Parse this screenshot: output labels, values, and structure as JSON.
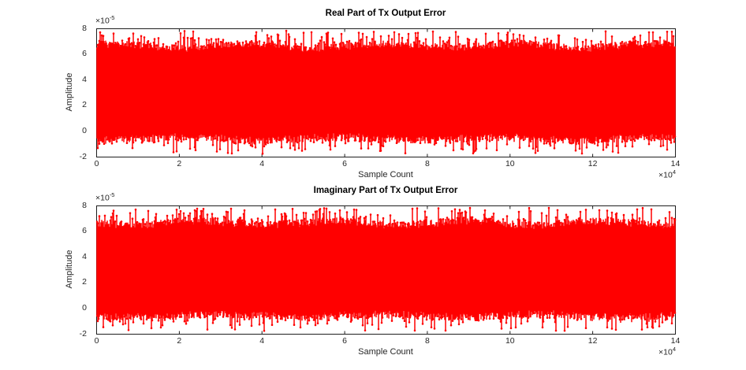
{
  "figure": {
    "background": "#FFFFFF",
    "axis_color": "#1F1F1F",
    "text_color": "#262626",
    "title_color": "#000000"
  },
  "chart_data": [
    {
      "type": "stem",
      "title": "Real Part of Tx Output Error",
      "xlabel": "Sample Count",
      "ylabel": "Amplitude",
      "x_exponent": {
        "base": "×10",
        "exp": "4"
      },
      "y_exponent": {
        "base": "×10",
        "exp": "-5"
      },
      "xlim": [
        0,
        14
      ],
      "ylim": [
        -2,
        8
      ],
      "xticks": [
        0,
        2,
        4,
        6,
        8,
        10,
        12,
        14
      ],
      "yticks": [
        8,
        6,
        4,
        2,
        0,
        -2
      ],
      "grid": false,
      "series_color": "#FF0000",
      "noise_envelope": {
        "core_top": 6.65,
        "core_top_jitter": 0.3,
        "spike_top_max": 7.85,
        "top_spike_prob": 0.3,
        "core_bottom": -0.55,
        "core_bottom_jitter": 0.3,
        "spike_bottom_min": -1.75,
        "bottom_spike_prob": 0.24,
        "units": "1e-5"
      },
      "seed": 7
    },
    {
      "type": "stem",
      "title": "Imaginary Part of Tx Output Error",
      "xlabel": "Sample Count",
      "ylabel": "Amplitude",
      "x_exponent": {
        "base": "×10",
        "exp": "4"
      },
      "y_exponent": {
        "base": "×10",
        "exp": "-5"
      },
      "xlim": [
        0,
        14
      ],
      "ylim": [
        -2,
        8
      ],
      "xticks": [
        0,
        2,
        4,
        6,
        8,
        10,
        12,
        14
      ],
      "yticks": [
        8,
        6,
        4,
        2,
        0,
        -2
      ],
      "grid": false,
      "series_color": "#FF0000",
      "noise_envelope": {
        "core_top": 6.65,
        "core_top_jitter": 0.3,
        "spike_top_max": 7.85,
        "top_spike_prob": 0.3,
        "core_bottom": -0.55,
        "core_bottom_jitter": 0.3,
        "spike_bottom_min": -1.75,
        "bottom_spike_prob": 0.24,
        "units": "1e-5"
      },
      "seed": 91
    }
  ]
}
